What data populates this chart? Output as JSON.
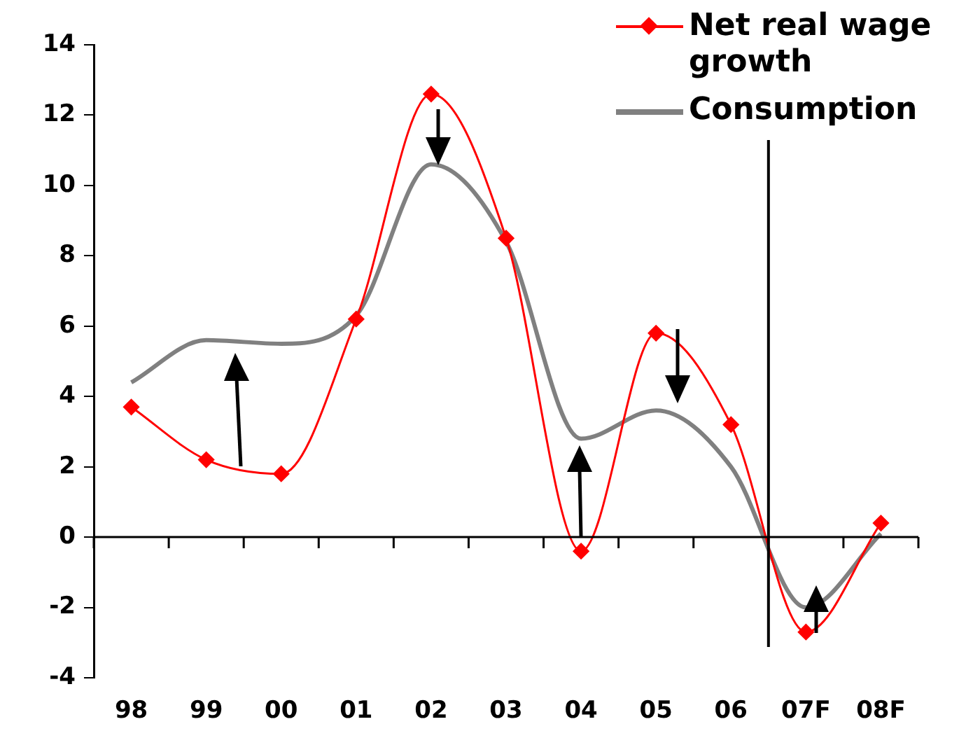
{
  "chart_data": {
    "type": "line",
    "categories": [
      "98",
      "99",
      "00",
      "01",
      "02",
      "03",
      "04",
      "05",
      "06",
      "07F",
      "08F"
    ],
    "series": [
      {
        "name": "Net real wage growth",
        "color": "#ff0000",
        "marker": "diamond",
        "values": [
          3.7,
          2.2,
          1.8,
          6.2,
          12.6,
          8.5,
          -0.4,
          5.8,
          3.2,
          -2.7,
          0.4
        ]
      },
      {
        "name": "Consumption",
        "color": "#808080",
        "marker": "none",
        "values": [
          4.4,
          5.6,
          5.5,
          6.3,
          10.6,
          8.4,
          2.8,
          3.6,
          2.0,
          -2.0,
          0.1
        ]
      }
    ],
    "ref_lines": [
      {
        "axis": "x",
        "value": "07F",
        "color": "#000000"
      }
    ],
    "ylim": [
      -4,
      14
    ],
    "yticks": [
      -4,
      -2,
      0,
      2,
      4,
      6,
      8,
      10,
      12,
      14
    ],
    "grid": false,
    "legend": "top right",
    "line_style": "solid"
  }
}
